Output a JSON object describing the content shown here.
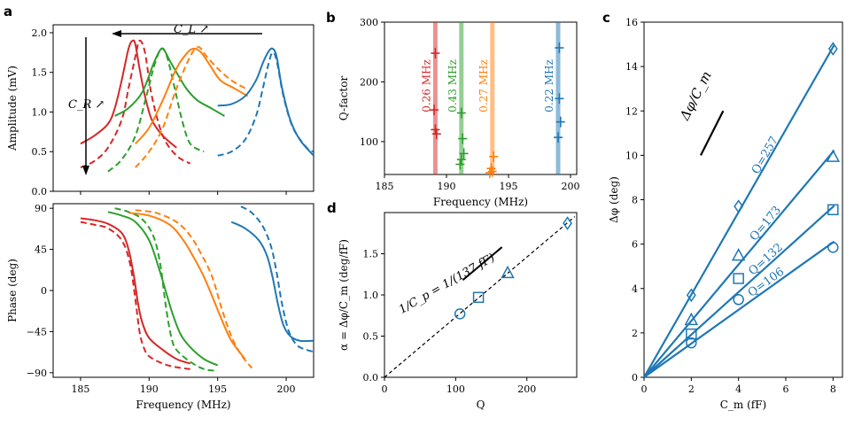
{
  "colors": {
    "red": "#d62728",
    "green": "#2ca02c",
    "orange": "#ff7f0e",
    "blue": "#1f77b4",
    "black": "#000000"
  },
  "chart_data": [
    {
      "id": "a-top",
      "panel": "a",
      "type": "line",
      "xlim": [
        183,
        202
      ],
      "ylim": [
        0,
        2.1
      ],
      "ylabel": "Amplitude (mV)",
      "yticks": [
        0.0,
        0.5,
        1.0,
        1.5,
        2.0
      ],
      "ytick_labels": [
        "0.0",
        "0.5",
        "1.0",
        "1.5",
        "2.0"
      ],
      "xticks": [
        185,
        190,
        195,
        200
      ],
      "annotations": {
        "cl": "C_L ↗",
        "cr": "C_R ↗"
      },
      "series": [
        {
          "color": "red",
          "style": "solid",
          "x": [
            185,
            186,
            187,
            187.5,
            188,
            188.5,
            188.8,
            189,
            189.3,
            189.7,
            190.2,
            191,
            192
          ],
          "y": [
            0.6,
            0.7,
            0.85,
            1.05,
            1.4,
            1.8,
            1.9,
            1.85,
            1.55,
            1.2,
            0.9,
            0.7,
            0.55
          ]
        },
        {
          "color": "red",
          "style": "dashed",
          "x": [
            185,
            186,
            187,
            188,
            188.5,
            189,
            189.3,
            189.7,
            190.2,
            191,
            192,
            193
          ],
          "y": [
            0.3,
            0.38,
            0.55,
            0.9,
            1.3,
            1.7,
            1.9,
            1.75,
            1.2,
            0.7,
            0.45,
            0.35
          ]
        },
        {
          "color": "green",
          "style": "solid",
          "x": [
            187.5,
            188.5,
            189.5,
            190.3,
            190.8,
            191.1,
            191.5,
            192,
            192.7,
            193.5,
            194.5,
            195.5
          ],
          "y": [
            0.95,
            1.05,
            1.25,
            1.6,
            1.78,
            1.78,
            1.65,
            1.5,
            1.3,
            1.15,
            1.05,
            0.95
          ]
        },
        {
          "color": "green",
          "style": "dashed",
          "x": [
            187,
            188,
            189,
            189.8,
            190.4,
            190.9,
            191.3,
            191.8,
            192.4,
            193,
            194
          ],
          "y": [
            0.25,
            0.4,
            0.7,
            1.2,
            1.6,
            1.8,
            1.7,
            1.35,
            0.9,
            0.6,
            0.5
          ]
        },
        {
          "color": "orange",
          "style": "solid",
          "x": [
            189,
            190,
            191,
            192,
            192.8,
            193.3,
            193.8,
            194.4,
            195.2,
            196.2,
            197.2
          ],
          "y": [
            0.6,
            0.8,
            1.15,
            1.55,
            1.75,
            1.8,
            1.75,
            1.6,
            1.4,
            1.3,
            1.2
          ]
        },
        {
          "color": "orange",
          "style": "dashed",
          "x": [
            189,
            190,
            191,
            192,
            193,
            193.6,
            194.2,
            195,
            196,
            197
          ],
          "y": [
            0.3,
            0.5,
            0.8,
            1.3,
            1.7,
            1.82,
            1.7,
            1.55,
            1.4,
            1.3
          ]
        },
        {
          "color": "blue",
          "style": "solid",
          "x": [
            195,
            196,
            197,
            197.8,
            198.3,
            198.7,
            199,
            199.3,
            199.7,
            200.3,
            201,
            202
          ],
          "y": [
            1.08,
            1.1,
            1.2,
            1.4,
            1.62,
            1.76,
            1.8,
            1.7,
            1.3,
            0.9,
            0.65,
            0.45
          ]
        },
        {
          "color": "blue",
          "style": "dashed",
          "x": [
            195,
            196,
            197,
            197.8,
            198.3,
            198.7,
            199,
            199.3,
            199.8,
            200.5,
            201.5,
            202
          ],
          "y": [
            0.45,
            0.5,
            0.65,
            0.95,
            1.3,
            1.6,
            1.75,
            1.65,
            1.2,
            0.8,
            0.55,
            0.5
          ]
        }
      ]
    },
    {
      "id": "a-bottom",
      "panel": "a",
      "type": "line",
      "xlim": [
        183,
        202
      ],
      "ylim": [
        -95,
        95
      ],
      "xlabel": "Frequency (MHz)",
      "ylabel": "Phase (deg)",
      "yticks": [
        -90,
        -45,
        0,
        45,
        90
      ],
      "ytick_labels": [
        "−90",
        "−45",
        "0",
        "45",
        "90"
      ],
      "xticks": [
        185,
        190,
        195,
        200
      ],
      "xtick_labels": [
        "185",
        "190",
        "195",
        "200"
      ],
      "series": [
        {
          "color": "red",
          "style": "solid",
          "x": [
            185,
            186,
            187,
            188,
            188.5,
            188.9,
            189.2,
            189.5,
            190,
            191,
            192,
            193
          ],
          "y": [
            79,
            77,
            73,
            63,
            45,
            15,
            -15,
            -35,
            -52,
            -65,
            -75,
            -80
          ]
        },
        {
          "color": "red",
          "style": "dashed",
          "x": [
            185,
            186,
            187,
            188,
            188.6,
            189,
            189.3,
            189.6,
            190,
            191,
            192,
            193
          ],
          "y": [
            75,
            72,
            68,
            55,
            30,
            -10,
            -45,
            -62,
            -72,
            -80,
            -84,
            -86
          ]
        },
        {
          "color": "green",
          "style": "solid",
          "x": [
            187,
            188,
            189,
            190,
            190.7,
            191.2,
            191.7,
            192.3,
            193,
            194,
            195
          ],
          "y": [
            86,
            82,
            75,
            55,
            25,
            0,
            -25,
            -48,
            -62,
            -75,
            -82
          ]
        },
        {
          "color": "green",
          "style": "dashed",
          "x": [
            187.5,
            188.5,
            189.5,
            190.3,
            190.8,
            191.2,
            191.6,
            192,
            193,
            194,
            195
          ],
          "y": [
            90,
            86,
            78,
            60,
            30,
            -15,
            -50,
            -65,
            -78,
            -86,
            -88
          ]
        },
        {
          "color": "orange",
          "style": "solid",
          "x": [
            188.5,
            190,
            191.5,
            192.5,
            193.3,
            194,
            194.7,
            195.3,
            196,
            197
          ],
          "y": [
            85,
            82,
            72,
            55,
            35,
            15,
            -10,
            -32,
            -55,
            -75
          ]
        },
        {
          "color": "orange",
          "style": "dashed",
          "x": [
            189,
            190.5,
            192,
            193,
            193.8,
            194.6,
            195.3,
            196,
            196.7,
            197.5
          ],
          "y": [
            88,
            85,
            75,
            60,
            40,
            15,
            -20,
            -50,
            -70,
            -85
          ]
        },
        {
          "color": "blue",
          "style": "solid",
          "x": [
            196,
            197,
            198,
            198.6,
            199,
            199.4,
            199.8,
            200.3,
            201,
            202
          ],
          "y": [
            75,
            68,
            55,
            38,
            15,
            -15,
            -38,
            -50,
            -55,
            -55
          ]
        },
        {
          "color": "blue",
          "style": "dashed",
          "x": [
            196.7,
            197.5,
            198.3,
            198.9,
            199.3,
            199.7,
            200.2,
            200.8,
            201.5,
            202
          ],
          "y": [
            92,
            85,
            70,
            48,
            20,
            -15,
            -45,
            -60,
            -65,
            -67
          ]
        }
      ]
    },
    {
      "id": "b",
      "panel": "b",
      "type": "scatter",
      "xlim": [
        185,
        200.5
      ],
      "ylim": [
        45,
        300
      ],
      "xlabel": "Frequency (MHz)",
      "ylabel": "Q-factor",
      "xticks": [
        185,
        190,
        195,
        200
      ],
      "xtick_labels": [
        "185",
        "190",
        "195",
        "200"
      ],
      "yticks": [
        100,
        200,
        300
      ],
      "ytick_labels": [
        "100",
        "200",
        "300"
      ],
      "vlines": [
        {
          "color": "red",
          "x": 189.1,
          "label": "0.26 MHz"
        },
        {
          "color": "green",
          "x": 191.2,
          "label": "0.43 MHz"
        },
        {
          "color": "orange",
          "x": 193.7,
          "label": "0.27 MHz"
        },
        {
          "color": "blue",
          "x": 199.0,
          "label": "0.22 MHz"
        }
      ],
      "series": [
        {
          "color": "red",
          "x": [
            189.1,
            189.0,
            189.1,
            189.2
          ],
          "y": [
            248,
            153,
            120,
            113
          ]
        },
        {
          "color": "green",
          "x": [
            191.2,
            191.3,
            191.4,
            191.1,
            191.2
          ],
          "y": [
            148,
            105,
            80,
            62,
            70
          ]
        },
        {
          "color": "orange",
          "x": [
            193.8,
            193.6,
            193.7,
            193.5
          ],
          "y": [
            75,
            55,
            50,
            48
          ]
        },
        {
          "color": "blue",
          "x": [
            199.1,
            199.1,
            199.2,
            199.0
          ],
          "y": [
            257,
            172,
            133,
            107
          ]
        }
      ]
    },
    {
      "id": "d",
      "panel": "d",
      "type": "scatter",
      "xlim": [
        0,
        270
      ],
      "ylim": [
        0,
        2.0
      ],
      "xlabel": "Q",
      "ylabel": "α = Δφ/C_m (deg/fF)",
      "xticks": [
        0,
        100,
        200
      ],
      "xtick_labels": [
        "0",
        "100",
        "200"
      ],
      "yticks": [
        0.0,
        0.5,
        1.0,
        1.5
      ],
      "ytick_labels": [
        "0.0",
        "0.5",
        "1.0",
        "1.5"
      ],
      "fit_label": "1/C_p = 1/(137 fF)",
      "fit_slope": 0.0073,
      "series": [
        {
          "color": "blue",
          "x": [
            106,
            132,
            173,
            257
          ],
          "y": [
            0.77,
            0.97,
            1.27,
            1.87
          ],
          "markers": [
            "circle",
            "square",
            "triangle",
            "diamond"
          ]
        }
      ]
    },
    {
      "id": "c",
      "panel": "c",
      "type": "scatter",
      "xlim": [
        0,
        8.4
      ],
      "ylim": [
        0,
        16
      ],
      "xlabel": "C_m (fF)",
      "ylabel": "Δφ (deg)",
      "xticks": [
        0,
        2,
        4,
        6,
        8
      ],
      "xtick_labels": [
        "0",
        "2",
        "4",
        "6",
        "8"
      ],
      "yticks": [
        0,
        2,
        4,
        6,
        8,
        10,
        12,
        14,
        16
      ],
      "ytick_labels": [
        "0",
        "2",
        "4",
        "6",
        "8",
        "10",
        "12",
        "14",
        "16"
      ],
      "slope_label": "Δφ/C_m",
      "series": [
        {
          "color": "blue",
          "name": "Q=257",
          "marker": "diamond",
          "x": [
            2,
            4,
            8
          ],
          "y": [
            3.7,
            7.7,
            14.8
          ],
          "slope": 1.86
        },
        {
          "color": "blue",
          "name": "Q=173",
          "marker": "triangle",
          "x": [
            2,
            4,
            8
          ],
          "y": [
            2.6,
            5.5,
            9.95
          ],
          "slope": 1.27
        },
        {
          "color": "blue",
          "name": "Q=132",
          "marker": "square",
          "x": [
            2,
            4,
            8
          ],
          "y": [
            1.95,
            4.45,
            7.55
          ],
          "slope": 0.96
        },
        {
          "color": "blue",
          "name": "Q=106",
          "marker": "circle",
          "x": [
            2,
            4,
            8
          ],
          "y": [
            1.55,
            3.5,
            5.85
          ],
          "slope": 0.76
        }
      ]
    }
  ],
  "panels": {
    "a": "a",
    "b": "b",
    "c": "c",
    "d": "d"
  }
}
